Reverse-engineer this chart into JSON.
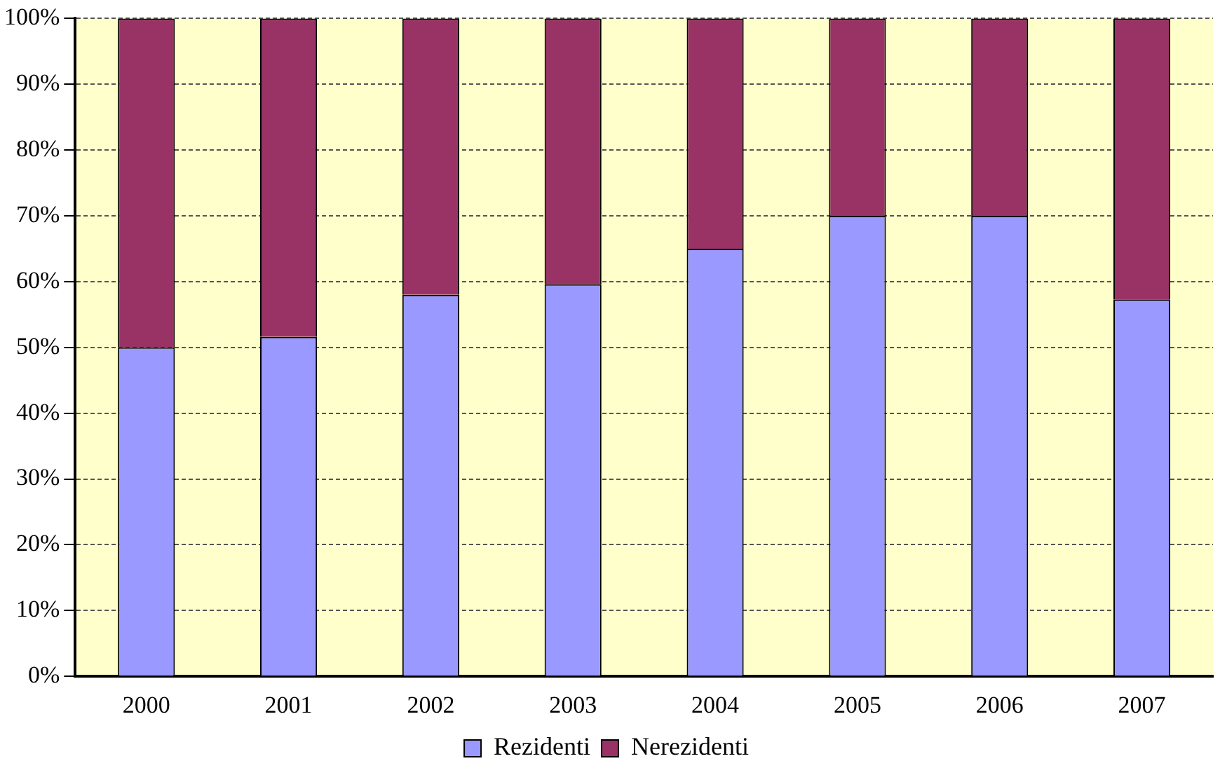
{
  "chart_data": {
    "type": "bar",
    "stacked": true,
    "categories": [
      "2000",
      "2001",
      "2002",
      "2003",
      "2004",
      "2005",
      "2006",
      "2007"
    ],
    "series": [
      {
        "name": "Rezidenti",
        "color": "#9999ff",
        "values": [
          50,
          51.6,
          58,
          59.6,
          65,
          70,
          70,
          57.3
        ]
      },
      {
        "name": "Nerezidenti",
        "color": "#993366",
        "values": [
          50,
          48.4,
          42,
          40.4,
          35,
          30,
          30,
          42.7
        ]
      }
    ],
    "ylim": [
      0,
      100
    ],
    "yticks": [
      {
        "value": 0,
        "label": "0%"
      },
      {
        "value": 10,
        "label": "10%"
      },
      {
        "value": 20,
        "label": "20%"
      },
      {
        "value": 30,
        "label": "30%"
      },
      {
        "value": 40,
        "label": "40%"
      },
      {
        "value": 50,
        "label": "50%"
      },
      {
        "value": 60,
        "label": "60%"
      },
      {
        "value": 70,
        "label": "70%"
      },
      {
        "value": 80,
        "label": "80%"
      },
      {
        "value": 90,
        "label": "90%"
      },
      {
        "value": 100,
        "label": "100%"
      }
    ],
    "grid": "y",
    "legend": "bottom"
  }
}
